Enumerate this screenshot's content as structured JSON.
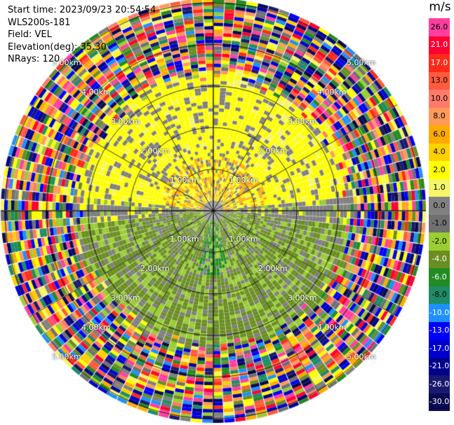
{
  "info": {
    "start_time": "Start time: 2023/09/23 20:54:54",
    "instrument": "WLS200s-181",
    "field": "Field: VEL",
    "elevation": "Elevation(deg): 35.30",
    "nrays": "NRays: 120"
  },
  "colorbar": {
    "unit": "m/s",
    "segments": [
      {
        "label": "26.0",
        "color": "#ff3fa0"
      },
      {
        "label": "21.0",
        "color": "#ff0033"
      },
      {
        "label": "17.0",
        "color": "#ff2a1a"
      },
      {
        "label": "13.0",
        "color": "#ff5a3c"
      },
      {
        "label": "10.0",
        "color": "#ff7a6a"
      },
      {
        "label": "8.0",
        "color": "#ff9a5a"
      },
      {
        "label": "6.0",
        "color": "#ffaa00"
      },
      {
        "label": "4.0",
        "color": "#ffd000"
      },
      {
        "label": "2.0",
        "color": "#ffff00"
      },
      {
        "label": "1.0",
        "color": "#f5f56a"
      },
      {
        "label": "0.0",
        "color": "#808080"
      },
      {
        "label": "-1.0",
        "color": "#707070"
      },
      {
        "label": "-2.0",
        "color": "#9acd32"
      },
      {
        "label": "-4.0",
        "color": "#6b8e23"
      },
      {
        "label": "-6.0",
        "color": "#228b22"
      },
      {
        "label": "-8.0",
        "color": "#1e8c66"
      },
      {
        "label": "-10.0",
        "color": "#1e90ff"
      },
      {
        "label": "-13.0",
        "color": "#0000ff"
      },
      {
        "label": "-17.0",
        "color": "#0000cd"
      },
      {
        "label": "-21.0",
        "color": "#00008b"
      },
      {
        "label": "-26.0",
        "color": "#191970"
      },
      {
        "label": "-30.0",
        "color": "#0a0a50"
      }
    ]
  },
  "rings": [
    {
      "km": 1,
      "label": "1.00km"
    },
    {
      "km": 2,
      "label": "2.00km"
    },
    {
      "km": 3,
      "label": "3.00km"
    },
    {
      "km": 4,
      "label": "4.00km"
    },
    {
      "km": 5,
      "label": "5.00km"
    }
  ]
}
